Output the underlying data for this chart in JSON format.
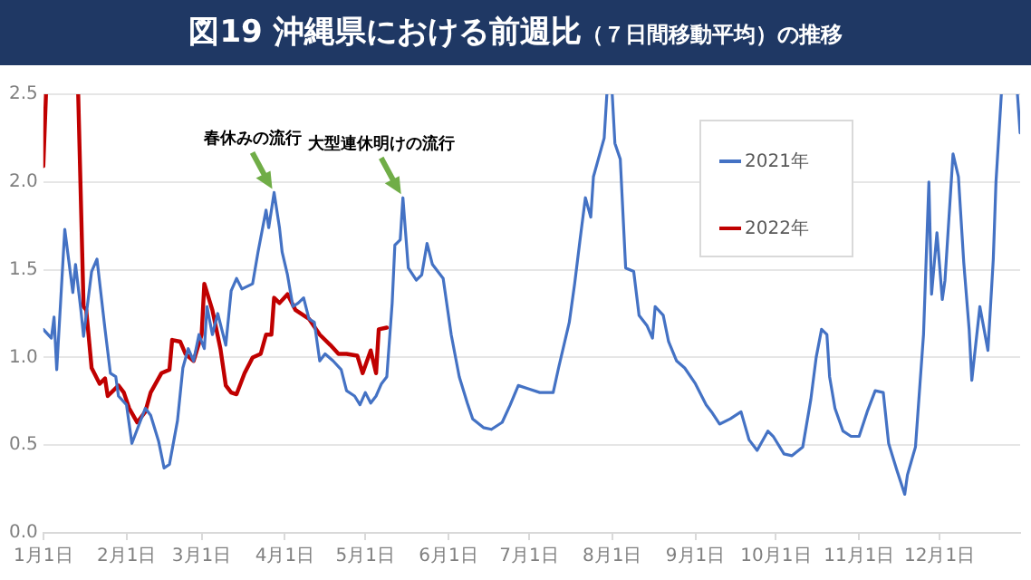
{
  "chart_data": {
    "type": "line",
    "title": "図19 沖縄県における前週比",
    "subtitle": "（７日間移動平均）の推移",
    "xlim": [
      "--01-01",
      "--12-31"
    ],
    "xticks": [
      {
        "value": "--01-01",
        "label": "1月1日"
      },
      {
        "value": "--02-01",
        "label": "2月1日"
      },
      {
        "value": "--03-01",
        "label": "3月1日"
      },
      {
        "value": "--04-01",
        "label": "4月1日"
      },
      {
        "value": "--05-01",
        "label": "5月1日"
      },
      {
        "value": "--06-01",
        "label": "6月1日"
      },
      {
        "value": "--07-01",
        "label": "7月1日"
      },
      {
        "value": "--08-01",
        "label": "8月1日"
      },
      {
        "value": "--09-01",
        "label": "9月1日"
      },
      {
        "value": "--10-01",
        "label": "10月1日"
      },
      {
        "value": "--11-01",
        "label": "11月1日"
      },
      {
        "value": "--12-01",
        "label": "12月1日"
      }
    ],
    "ylim": [
      0,
      2.5
    ],
    "yticks": [
      {
        "value": 0,
        "label": "0.0"
      },
      {
        "value": 0.5,
        "label": "0.5"
      },
      {
        "value": 1,
        "label": "1.0"
      },
      {
        "value": 1.5,
        "label": "1.5"
      },
      {
        "value": 2,
        "label": "2.0"
      },
      {
        "value": 2.5,
        "label": "2.5"
      }
    ],
    "grid": "y",
    "legend": "top right",
    "marker": "none",
    "line_style": "solid",
    "annotations": [
      {
        "text": "春休みの流行",
        "x": "--03-28",
        "y": 1.94
      },
      {
        "text": "大型連休明けの流行",
        "x": "--05-15",
        "y": 1.91
      }
    ],
    "series": [
      {
        "name": "2021年",
        "color": "#4472c4",
        "x": [
          "--01-01",
          "--01-04",
          "--01-05",
          "--01-06",
          "--01-09",
          "--01-12",
          "--01-13",
          "--01-15",
          "--01-16",
          "--01-19",
          "--01-21",
          "--01-24",
          "--01-26",
          "--01-28",
          "--01-29",
          "--02-01",
          "--02-03",
          "--02-06",
          "--02-08",
          "--02-10",
          "--02-13",
          "--02-15",
          "--02-17",
          "--02-20",
          "--02-22",
          "--02-24",
          "--02-26",
          "--02-28",
          "--03-02",
          "--03-03",
          "--03-05",
          "--03-07",
          "--03-10",
          "--03-12",
          "--03-14",
          "--03-16",
          "--03-20",
          "--03-22",
          "--03-25",
          "--03-26",
          "--03-28",
          "--03-30",
          "--03-31",
          "--04-02",
          "--04-04",
          "--04-06",
          "--04-08",
          "--04-10",
          "--04-12",
          "--04-14",
          "--04-16",
          "--04-19",
          "--04-22",
          "--04-24",
          "--04-27",
          "--04-29",
          "--05-01",
          "--05-03",
          "--05-05",
          "--05-07",
          "--05-09",
          "--05-11",
          "--05-12",
          "--05-14",
          "--05-15",
          "--05-17",
          "--05-20",
          "--05-22",
          "--05-24",
          "--05-26",
          "--05-30",
          "--06-02",
          "--06-05",
          "--06-08",
          "--06-10",
          "--06-14",
          "--06-17",
          "--06-21",
          "--06-24",
          "--06-27",
          "--07-01",
          "--07-05",
          "--07-10",
          "--07-12",
          "--07-16",
          "--07-18",
          "--07-20",
          "--07-22",
          "--07-24",
          "--07-25",
          "--07-27",
          "--07-29",
          "--07-30",
          "--07-31",
          "--08-01",
          "--08-02",
          "--08-04",
          "--08-06",
          "--08-09",
          "--08-11",
          "--08-14",
          "--08-16",
          "--08-17",
          "--08-20",
          "--08-22",
          "--08-25",
          "--08-28",
          "--09-01",
          "--09-05",
          "--09-07",
          "--09-10",
          "--09-14",
          "--09-18",
          "--09-21",
          "--09-24",
          "--09-28",
          "--09-30",
          "--10-04",
          "--10-07",
          "--10-11",
          "--10-14",
          "--10-16",
          "--10-18",
          "--10-20",
          "--10-21",
          "--10-23",
          "--10-26",
          "--10-29",
          "--11-01",
          "--11-04",
          "--11-07",
          "--11-10",
          "--11-12",
          "--11-15",
          "--11-18",
          "--11-19",
          "--11-22",
          "--11-25",
          "--11-27",
          "--11-28",
          "--11-30",
          "--12-02",
          "--12-03",
          "--12-06",
          "--12-08",
          "--12-10",
          "--12-12",
          "--12-13",
          "--12-16",
          "--12-19",
          "--12-21",
          "--12-22",
          "--12-24",
          "--12-27",
          "--12-30",
          "--12-31"
        ],
        "values": [
          1.16,
          1.11,
          1.23,
          0.93,
          1.73,
          1.37,
          1.53,
          1.27,
          1.12,
          1.49,
          1.56,
          1.16,
          0.91,
          0.89,
          0.78,
          0.73,
          0.51,
          0.63,
          0.71,
          0.67,
          0.52,
          0.37,
          0.39,
          0.64,
          0.94,
          1.05,
          0.98,
          1.13,
          1.05,
          1.29,
          1.13,
          1.25,
          1.07,
          1.38,
          1.45,
          1.39,
          1.42,
          1.6,
          1.84,
          1.74,
          1.94,
          1.74,
          1.6,
          1.47,
          1.29,
          1.31,
          1.34,
          1.22,
          1.2,
          0.98,
          1.02,
          0.98,
          0.93,
          0.81,
          0.78,
          0.73,
          0.8,
          0.74,
          0.78,
          0.85,
          0.89,
          1.31,
          1.64,
          1.67,
          1.91,
          1.51,
          1.44,
          1.47,
          1.65,
          1.53,
          1.45,
          1.13,
          0.89,
          0.74,
          0.65,
          0.6,
          0.59,
          0.63,
          0.73,
          0.84,
          0.82,
          0.8,
          0.8,
          0.94,
          1.2,
          1.42,
          1.67,
          1.91,
          1.8,
          2.03,
          2.14,
          2.25,
          2.5,
          null,
          2.5,
          2.22,
          2.13,
          1.51,
          1.49,
          1.24,
          1.18,
          1.11,
          1.29,
          1.24,
          1.09,
          0.98,
          0.94,
          0.85,
          0.73,
          0.69,
          0.62,
          0.65,
          0.69,
          0.53,
          0.47,
          0.58,
          0.55,
          0.45,
          0.44,
          0.49,
          0.76,
          1.0,
          1.16,
          1.13,
          0.89,
          0.71,
          0.58,
          0.55,
          0.55,
          0.69,
          0.81,
          0.8,
          0.51,
          0.36,
          0.22,
          0.33,
          0.49,
          1.13,
          2.0,
          1.36,
          1.71,
          1.33,
          1.44,
          2.16,
          2.03,
          1.54,
          1.16,
          0.87,
          1.29,
          1.04,
          1.56,
          2.0,
          2.5,
          null,
          2.5,
          2.28
        ]
      },
      {
        "name": "2022年",
        "color": "#c00000",
        "x": [
          "--01-01",
          "--01-02",
          "--01-08",
          "--01-14",
          "--01-16",
          "--01-17",
          "--01-19",
          "--01-22",
          "--01-24",
          "--01-25",
          "--01-29",
          "--01-31",
          "--02-02",
          "--02-05",
          "--02-08",
          "--02-10",
          "--02-14",
          "--02-17",
          "--02-18",
          "--02-21",
          "--02-23",
          "--02-26",
          "--03-01",
          "--03-02",
          "--03-05",
          "--03-08",
          "--03-10",
          "--03-12",
          "--03-14",
          "--03-17",
          "--03-20",
          "--03-23",
          "--03-25",
          "--03-27",
          "--03-28",
          "--03-30",
          "--04-02",
          "--04-05",
          "--04-10",
          "--04-14",
          "--04-18",
          "--04-21",
          "--04-24",
          "--04-28",
          "--04-30",
          "--05-03",
          "--05-05",
          "--05-06",
          "--05-09"
        ],
        "values": [
          2.09,
          2.5,
          null,
          2.5,
          1.29,
          1.27,
          0.94,
          0.85,
          0.88,
          0.78,
          0.84,
          0.8,
          0.71,
          0.63,
          0.69,
          0.8,
          0.91,
          0.93,
          1.1,
          1.09,
          1.02,
          0.98,
          1.13,
          1.42,
          1.27,
          1.05,
          0.84,
          0.8,
          0.79,
          0.91,
          1.0,
          1.02,
          1.13,
          1.13,
          1.34,
          1.31,
          1.36,
          1.27,
          1.22,
          1.13,
          1.07,
          1.02,
          1.02,
          1.01,
          0.91,
          1.04,
          0.91,
          1.16,
          1.17
        ]
      }
    ]
  }
}
